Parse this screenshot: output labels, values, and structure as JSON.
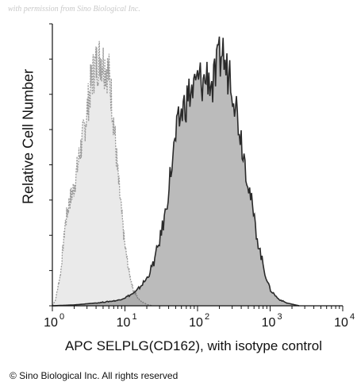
{
  "watermark": "with permission from Sino Biological Inc.",
  "copyright": "© Sino Biological Inc. All rights reserved",
  "chart_data": {
    "type": "area",
    "title": "",
    "xlabel": "APC SELPLG(CD162), with isotype control",
    "ylabel": "Relative Cell Number",
    "xscale": "log",
    "xlim": [
      1,
      10000
    ],
    "ylim": [
      0,
      100
    ],
    "x_ticks": [
      {
        "base": "10",
        "exp": "0",
        "value": 1
      },
      {
        "base": "10",
        "exp": "1",
        "value": 10
      },
      {
        "base": "10",
        "exp": "2",
        "value": 100
      },
      {
        "base": "10",
        "exp": "3",
        "value": 1000
      },
      {
        "base": "10",
        "exp": "4",
        "value": 10000
      }
    ],
    "series": [
      {
        "style": "dotted-light",
        "color": "#9a9a9a",
        "x": [
          1.0,
          1.1,
          1.3,
          1.5,
          1.7,
          2.0,
          2.3,
          2.7,
          3.0,
          3.4,
          3.8,
          4.2,
          4.6,
          5.0,
          5.5,
          6.0,
          6.6,
          7.2,
          8.0,
          9.0,
          10,
          11.5,
          13,
          15,
          17,
          20,
          24
        ],
        "y": [
          0,
          2,
          12,
          30,
          38,
          44,
          54,
          64,
          72,
          82,
          88,
          90,
          92,
          90,
          88,
          86,
          76,
          64,
          48,
          34,
          22,
          12,
          6,
          3,
          1.5,
          0.5,
          0
        ]
      },
      {
        "style": "solid-dark",
        "color": "#2a2a2a",
        "x": [
          1.0,
          2,
          4,
          8,
          10,
          14,
          20,
          25,
          30,
          36,
          42,
          50,
          58,
          66,
          76,
          90,
          105,
          120,
          140,
          160,
          190,
          220,
          250,
          280,
          330,
          400,
          500,
          600,
          700,
          850,
          1000,
          1300,
          1700,
          2500
        ],
        "y": [
          0,
          0.3,
          1,
          2,
          3,
          5,
          10,
          16,
          24,
          34,
          48,
          62,
          70,
          74,
          78,
          80,
          84,
          82,
          86,
          80,
          88,
          95,
          86,
          88,
          76,
          62,
          46,
          32,
          22,
          12,
          6,
          2.5,
          1,
          0
        ]
      }
    ],
    "grid": false,
    "legend": "none"
  }
}
